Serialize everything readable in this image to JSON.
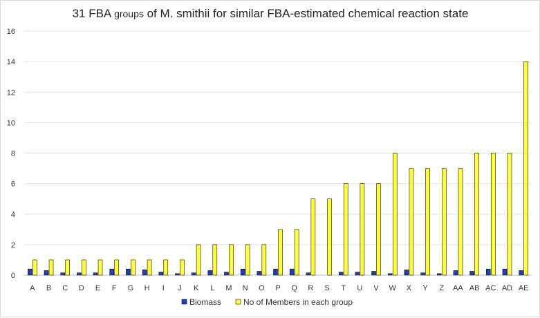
{
  "chart_data": {
    "type": "bar",
    "title": "31 FBA groups of M. smithii for similar FBA-estimated chemical reaction state",
    "title_parts": {
      "lead": "31 FBA ",
      "small": "groups",
      "rest": " of M. smithii for similar FBA-estimated chemical reaction state"
    },
    "xlabel": "",
    "ylabel": "",
    "ylim": [
      0,
      16
    ],
    "yticks": [
      0,
      2,
      4,
      6,
      8,
      10,
      12,
      14,
      16
    ],
    "grid": true,
    "legend_position": "bottom",
    "categories": [
      "A",
      "B",
      "C",
      "D",
      "E",
      "F",
      "G",
      "H",
      "I",
      "J",
      "K",
      "L",
      "M",
      "N",
      "O",
      "P",
      "Q",
      "R",
      "S",
      "T",
      "U",
      "V",
      "W",
      "X",
      "Y",
      "Z",
      "AA",
      "AB",
      "AC",
      "AD",
      "AE"
    ],
    "series": [
      {
        "name": "Biomass",
        "color": "#1f3fbf",
        "values": [
          0.4,
          0.3,
          0.15,
          0.15,
          0.15,
          0.4,
          0.4,
          0.35,
          0.2,
          0.1,
          0.15,
          0.3,
          0.2,
          0.4,
          0.25,
          0.4,
          0.4,
          0.15,
          0.0,
          0.2,
          0.2,
          0.25,
          0.1,
          0.35,
          0.15,
          0.1,
          0.3,
          0.25,
          0.4,
          0.4,
          0.3
        ]
      },
      {
        "name": "No of Members in each group",
        "color": "#ffff33",
        "values": [
          1,
          1,
          1,
          1,
          1,
          1,
          1,
          1,
          1,
          1,
          2,
          2,
          2,
          2,
          2,
          3,
          3,
          5,
          5,
          6,
          6,
          6,
          8,
          7,
          7,
          7,
          7,
          8,
          8,
          8,
          14
        ]
      }
    ]
  }
}
